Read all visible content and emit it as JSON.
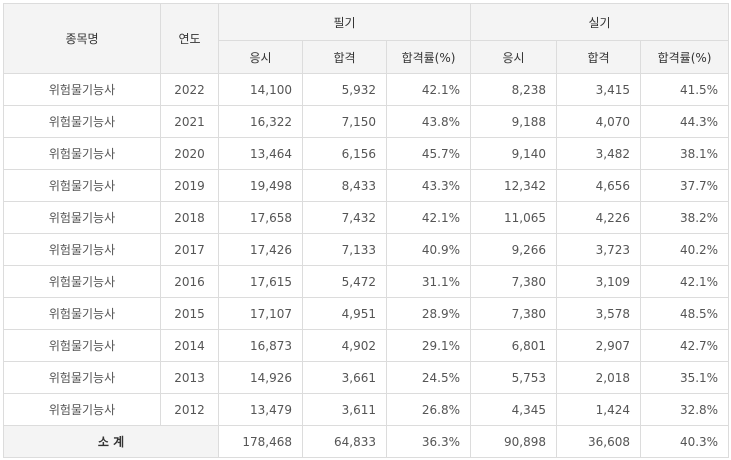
{
  "headers": {
    "item": "종목명",
    "year": "연도",
    "written": "필기",
    "practical": "실기",
    "applicants": "응시",
    "passed": "합격",
    "rate": "합격률(%)"
  },
  "rows": [
    {
      "name": "위험물기능사",
      "year": "2022",
      "w_app": "14,100",
      "w_pass": "5,932",
      "w_rate": "42.1%",
      "p_app": "8,238",
      "p_pass": "3,415",
      "p_rate": "41.5%"
    },
    {
      "name": "위험물기능사",
      "year": "2021",
      "w_app": "16,322",
      "w_pass": "7,150",
      "w_rate": "43.8%",
      "p_app": "9,188",
      "p_pass": "4,070",
      "p_rate": "44.3%"
    },
    {
      "name": "위험물기능사",
      "year": "2020",
      "w_app": "13,464",
      "w_pass": "6,156",
      "w_rate": "45.7%",
      "p_app": "9,140",
      "p_pass": "3,482",
      "p_rate": "38.1%"
    },
    {
      "name": "위험물기능사",
      "year": "2019",
      "w_app": "19,498",
      "w_pass": "8,433",
      "w_rate": "43.3%",
      "p_app": "12,342",
      "p_pass": "4,656",
      "p_rate": "37.7%"
    },
    {
      "name": "위험물기능사",
      "year": "2018",
      "w_app": "17,658",
      "w_pass": "7,432",
      "w_rate": "42.1%",
      "p_app": "11,065",
      "p_pass": "4,226",
      "p_rate": "38.2%"
    },
    {
      "name": "위험물기능사",
      "year": "2017",
      "w_app": "17,426",
      "w_pass": "7,133",
      "w_rate": "40.9%",
      "p_app": "9,266",
      "p_pass": "3,723",
      "p_rate": "40.2%"
    },
    {
      "name": "위험물기능사",
      "year": "2016",
      "w_app": "17,615",
      "w_pass": "5,472",
      "w_rate": "31.1%",
      "p_app": "7,380",
      "p_pass": "3,109",
      "p_rate": "42.1%"
    },
    {
      "name": "위험물기능사",
      "year": "2015",
      "w_app": "17,107",
      "w_pass": "4,951",
      "w_rate": "28.9%",
      "p_app": "7,380",
      "p_pass": "3,578",
      "p_rate": "48.5%"
    },
    {
      "name": "위험물기능사",
      "year": "2014",
      "w_app": "16,873",
      "w_pass": "4,902",
      "w_rate": "29.1%",
      "p_app": "6,801",
      "p_pass": "2,907",
      "p_rate": "42.7%"
    },
    {
      "name": "위험물기능사",
      "year": "2013",
      "w_app": "14,926",
      "w_pass": "3,661",
      "w_rate": "24.5%",
      "p_app": "5,753",
      "p_pass": "2,018",
      "p_rate": "35.1%"
    },
    {
      "name": "위험물기능사",
      "year": "2012",
      "w_app": "13,479",
      "w_pass": "3,611",
      "w_rate": "26.8%",
      "p_app": "4,345",
      "p_pass": "1,424",
      "p_rate": "32.8%"
    }
  ],
  "total": {
    "label": "소 계",
    "w_app": "178,468",
    "w_pass": "64,833",
    "w_rate": "36.3%",
    "p_app": "90,898",
    "p_pass": "36,608",
    "p_rate": "40.3%"
  }
}
